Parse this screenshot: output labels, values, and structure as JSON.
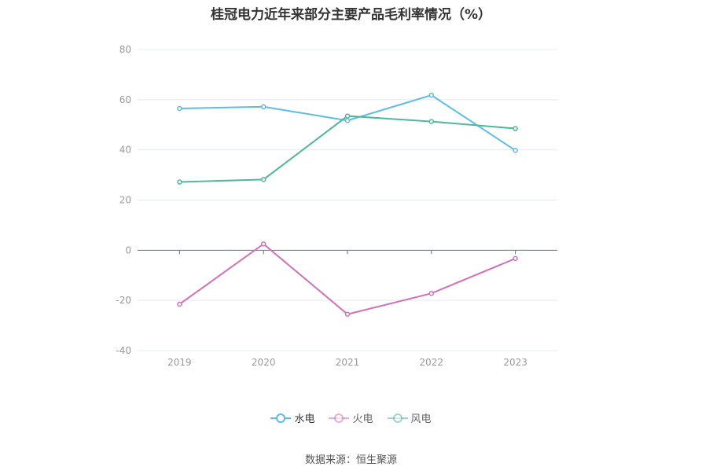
{
  "title": "桂冠电力近年来部分主要产品毛利率情况（%）",
  "source": "数据来源：恒生聚源",
  "chart_data": {
    "type": "line",
    "categories": [
      "2019",
      "2020",
      "2021",
      "2022",
      "2023"
    ],
    "ylim": [
      -40,
      80
    ],
    "yticks": [
      "-40",
      "-20",
      "0",
      "20",
      "40",
      "60",
      "80"
    ],
    "grid": true,
    "legend_position": "bottom",
    "series": [
      {
        "name": "水电",
        "color": "#5bbde9",
        "values": [
          56.5,
          57.2,
          51.7,
          61.8,
          39.8
        ]
      },
      {
        "name": "火电",
        "color": "#d56fb8",
        "values": [
          -21.5,
          2.5,
          -25.5,
          -17.2,
          -3.3
        ]
      },
      {
        "name": "风电",
        "color": "#4fb89b",
        "values": [
          27.2,
          28.2,
          53.5,
          51.3,
          48.5
        ]
      }
    ]
  }
}
